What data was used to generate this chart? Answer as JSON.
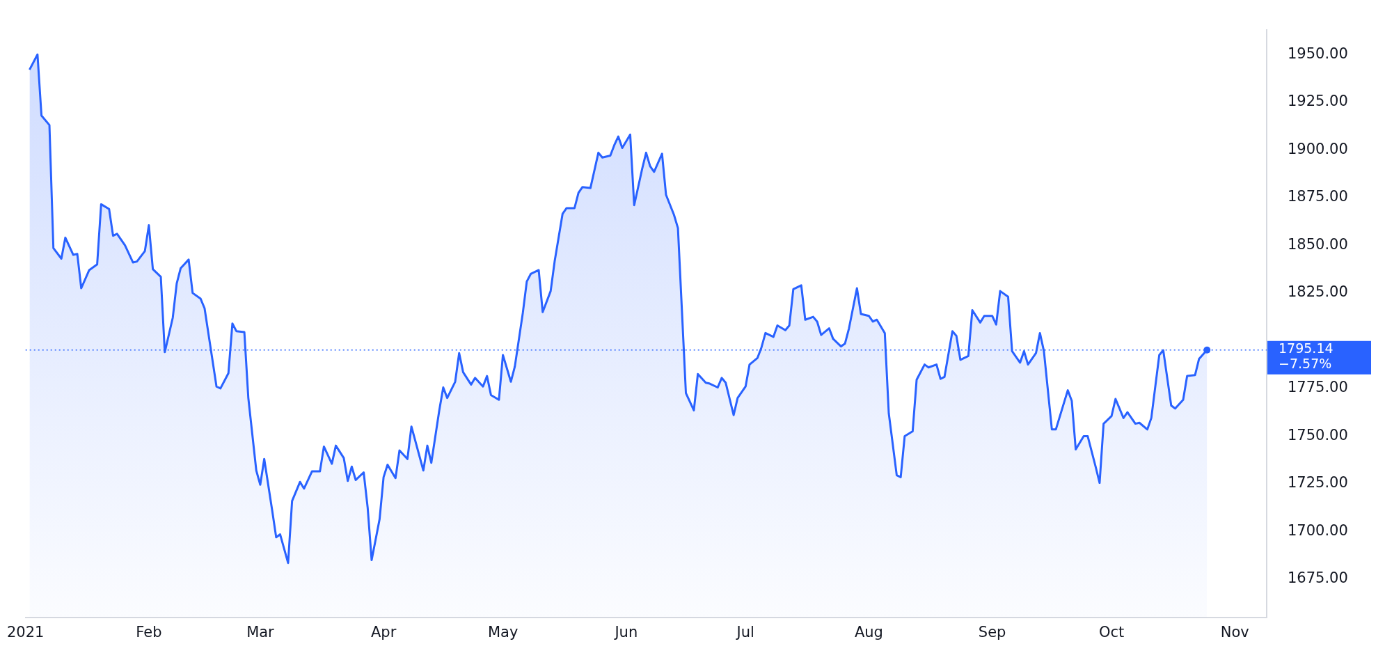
{
  "chart_data": {
    "type": "area",
    "xlim": [
      "2021-01-01",
      "2021-11-09"
    ],
    "xticks": [
      {
        "value": "2021-01-01",
        "label": "2021"
      },
      {
        "value": "2021-02-01",
        "label": "Feb"
      },
      {
        "value": "2021-03-01",
        "label": "Mar"
      },
      {
        "value": "2021-04-01",
        "label": "Apr"
      },
      {
        "value": "2021-05-01",
        "label": "May"
      },
      {
        "value": "2021-06-01",
        "label": "Jun"
      },
      {
        "value": "2021-07-01",
        "label": "Jul"
      },
      {
        "value": "2021-08-01",
        "label": "Aug"
      },
      {
        "value": "2021-09-01",
        "label": "Sep"
      },
      {
        "value": "2021-10-01",
        "label": "Oct"
      },
      {
        "value": "2021-11-01",
        "label": "Nov"
      }
    ],
    "ylim": [
      1655,
      1963
    ],
    "yticks": [
      {
        "value": 1675,
        "label": "1675.00"
      },
      {
        "value": 1700,
        "label": "1700.00"
      },
      {
        "value": 1725,
        "label": "1725.00"
      },
      {
        "value": 1750,
        "label": "1750.00"
      },
      {
        "value": 1775,
        "label": "1775.00"
      },
      {
        "value": 1825,
        "label": "1825.00"
      },
      {
        "value": 1850,
        "label": "1850.00"
      },
      {
        "value": 1875,
        "label": "1875.00"
      },
      {
        "value": 1900,
        "label": "1900.00"
      },
      {
        "value": 1925,
        "label": "1925.00"
      },
      {
        "value": 1950,
        "label": "1950.00"
      }
    ],
    "grid": false,
    "legend": false,
    "ref_lines": [
      {
        "axis": "y",
        "value": 1795.14,
        "label": "1795.14",
        "color": "#2962ff",
        "line_style": "dotted"
      }
    ],
    "annotations": [
      "−7.57%"
    ],
    "series": [
      {
        "color": "#2962ff",
        "x": [
          "2021-01-02",
          "2021-01-04",
          "2021-01-05",
          "2021-01-07",
          "2021-01-08",
          "2021-01-10",
          "2021-01-11",
          "2021-01-13",
          "2021-01-14",
          "2021-01-15",
          "2021-01-17",
          "2021-01-19",
          "2021-01-20",
          "2021-01-22",
          "2021-01-23",
          "2021-01-24",
          "2021-01-26",
          "2021-01-28",
          "2021-01-29",
          "2021-01-31",
          "2021-02-01",
          "2021-02-02",
          "2021-02-04",
          "2021-02-05",
          "2021-02-07",
          "2021-02-08",
          "2021-02-09",
          "2021-02-11",
          "2021-02-12",
          "2021-02-14",
          "2021-02-15",
          "2021-02-18",
          "2021-02-19",
          "2021-02-21",
          "2021-02-22",
          "2021-02-23",
          "2021-02-25",
          "2021-02-26",
          "2021-02-28",
          "2021-03-01",
          "2021-03-02",
          "2021-03-04",
          "2021-03-05",
          "2021-03-06",
          "2021-03-08",
          "2021-03-09",
          "2021-03-11",
          "2021-03-12",
          "2021-03-14",
          "2021-03-16",
          "2021-03-17",
          "2021-03-19",
          "2021-03-20",
          "2021-03-22",
          "2021-03-23",
          "2021-03-24",
          "2021-03-25",
          "2021-03-27",
          "2021-03-28",
          "2021-03-29",
          "2021-03-31",
          "2021-04-01",
          "2021-04-02",
          "2021-04-04",
          "2021-04-05",
          "2021-04-07",
          "2021-04-08",
          "2021-04-11",
          "2021-04-12",
          "2021-04-13",
          "2021-04-15",
          "2021-04-16",
          "2021-04-17",
          "2021-04-19",
          "2021-04-20",
          "2021-04-21",
          "2021-04-23",
          "2021-04-24",
          "2021-04-26",
          "2021-04-27",
          "2021-04-28",
          "2021-04-30",
          "2021-05-01",
          "2021-05-03",
          "2021-05-04",
          "2021-05-06",
          "2021-05-07",
          "2021-05-08",
          "2021-05-10",
          "2021-05-11",
          "2021-05-13",
          "2021-05-14",
          "2021-05-16",
          "2021-05-17",
          "2021-05-19",
          "2021-05-20",
          "2021-05-21",
          "2021-05-23",
          "2021-05-25",
          "2021-05-26",
          "2021-05-28",
          "2021-05-29",
          "2021-05-30",
          "2021-05-31",
          "2021-06-02",
          "2021-06-03",
          "2021-06-05",
          "2021-06-06",
          "2021-06-07",
          "2021-06-08",
          "2021-06-10",
          "2021-06-11",
          "2021-06-13",
          "2021-06-14",
          "2021-06-16",
          "2021-06-18",
          "2021-06-19",
          "2021-06-21",
          "2021-06-22",
          "2021-06-24",
          "2021-06-25",
          "2021-06-26",
          "2021-06-28",
          "2021-06-29",
          "2021-07-01",
          "2021-07-02",
          "2021-07-04",
          "2021-07-05",
          "2021-07-06",
          "2021-07-08",
          "2021-07-09",
          "2021-07-11",
          "2021-07-12",
          "2021-07-13",
          "2021-07-15",
          "2021-07-16",
          "2021-07-18",
          "2021-07-19",
          "2021-07-20",
          "2021-07-22",
          "2021-07-23",
          "2021-07-25",
          "2021-07-26",
          "2021-07-27",
          "2021-07-29",
          "2021-07-30",
          "2021-08-01",
          "2021-08-02",
          "2021-08-03",
          "2021-08-05",
          "2021-08-06",
          "2021-08-08",
          "2021-08-09",
          "2021-08-10",
          "2021-08-12",
          "2021-08-13",
          "2021-08-15",
          "2021-08-16",
          "2021-08-18",
          "2021-08-19",
          "2021-08-20",
          "2021-08-22",
          "2021-08-23",
          "2021-08-24",
          "2021-08-26",
          "2021-08-27",
          "2021-08-29",
          "2021-08-30",
          "2021-09-01",
          "2021-09-02",
          "2021-09-03",
          "2021-09-05",
          "2021-09-06",
          "2021-09-08",
          "2021-09-09",
          "2021-09-10",
          "2021-09-12",
          "2021-09-13",
          "2021-09-14",
          "2021-09-16",
          "2021-09-17",
          "2021-09-20",
          "2021-09-21",
          "2021-09-22",
          "2021-09-24",
          "2021-09-25",
          "2021-09-27",
          "2021-09-28",
          "2021-09-29",
          "2021-10-01",
          "2021-10-02",
          "2021-10-04",
          "2021-10-05",
          "2021-10-07",
          "2021-10-08",
          "2021-10-10",
          "2021-10-11",
          "2021-10-13",
          "2021-10-14",
          "2021-10-16",
          "2021-10-17",
          "2021-10-19",
          "2021-10-20",
          "2021-10-22",
          "2021-10-23",
          "2021-10-25"
        ],
        "values": [
          1942,
          1950,
          1918,
          1913,
          1848.5,
          1843,
          1854,
          1845,
          1845.5,
          1827.5,
          1837,
          1840,
          1871.5,
          1869,
          1855,
          1856,
          1850,
          1841,
          1841.5,
          1847,
          1860.5,
          1837.5,
          1833.5,
          1794,
          1812,
          1830,
          1838,
          1842.5,
          1825,
          1822,
          1817,
          1776,
          1775,
          1783,
          1809,
          1805,
          1804.5,
          1770,
          1732,
          1724.5,
          1738,
          1711,
          1697,
          1698.5,
          1683.5,
          1716,
          1726,
          1722.5,
          1731.5,
          1731.5,
          1744.5,
          1735.5,
          1745,
          1738.5,
          1726.5,
          1734,
          1727,
          1731,
          1712.5,
          1685,
          1706.5,
          1728.5,
          1735,
          1728,
          1742.5,
          1738,
          1755,
          1732,
          1745,
          1736,
          1763.5,
          1775.5,
          1770,
          1778.5,
          1793.5,
          1783.5,
          1777,
          1780.5,
          1776,
          1781.5,
          1771.5,
          1769,
          1792.5,
          1778.5,
          1786.5,
          1814.5,
          1831,
          1835,
          1837,
          1815,
          1826,
          1841.5,
          1866.5,
          1869.5,
          1869.5,
          1877.5,
          1880.5,
          1880,
          1898.5,
          1896,
          1897,
          1902.5,
          1907,
          1901,
          1908,
          1871,
          1890,
          1898.5,
          1891.5,
          1888.5,
          1898,
          1876.5,
          1866,
          1859,
          1772.5,
          1763.5,
          1782.5,
          1778,
          1777.5,
          1775.5,
          1780.5,
          1778,
          1761,
          1770,
          1776,
          1787.5,
          1791,
          1796.5,
          1804,
          1802,
          1808,
          1805.5,
          1808,
          1827,
          1829,
          1811,
          1812.5,
          1810,
          1803,
          1806.5,
          1801,
          1797,
          1798.5,
          1806.5,
          1827.5,
          1814,
          1813,
          1810,
          1811,
          1804,
          1762,
          1729.5,
          1728.5,
          1750,
          1752.5,
          1779.5,
          1787.5,
          1786,
          1787.5,
          1780,
          1781,
          1805,
          1802.5,
          1790,
          1792,
          1816,
          1809.5,
          1813,
          1813,
          1808.5,
          1826,
          1823,
          1794.5,
          1788.5,
          1794.5,
          1787.5,
          1793.5,
          1804,
          1794.5,
          1753.5,
          1753.5,
          1774,
          1768.5,
          1743,
          1750,
          1750,
          1734,
          1725.5,
          1756.5,
          1760.5,
          1769.5,
          1759.5,
          1762.5,
          1756.5,
          1757,
          1753.5,
          1759.5,
          1792.5,
          1795,
          1766,
          1764.5,
          1769,
          1781.5,
          1782,
          1790.5,
          1795.14
        ]
      }
    ]
  }
}
